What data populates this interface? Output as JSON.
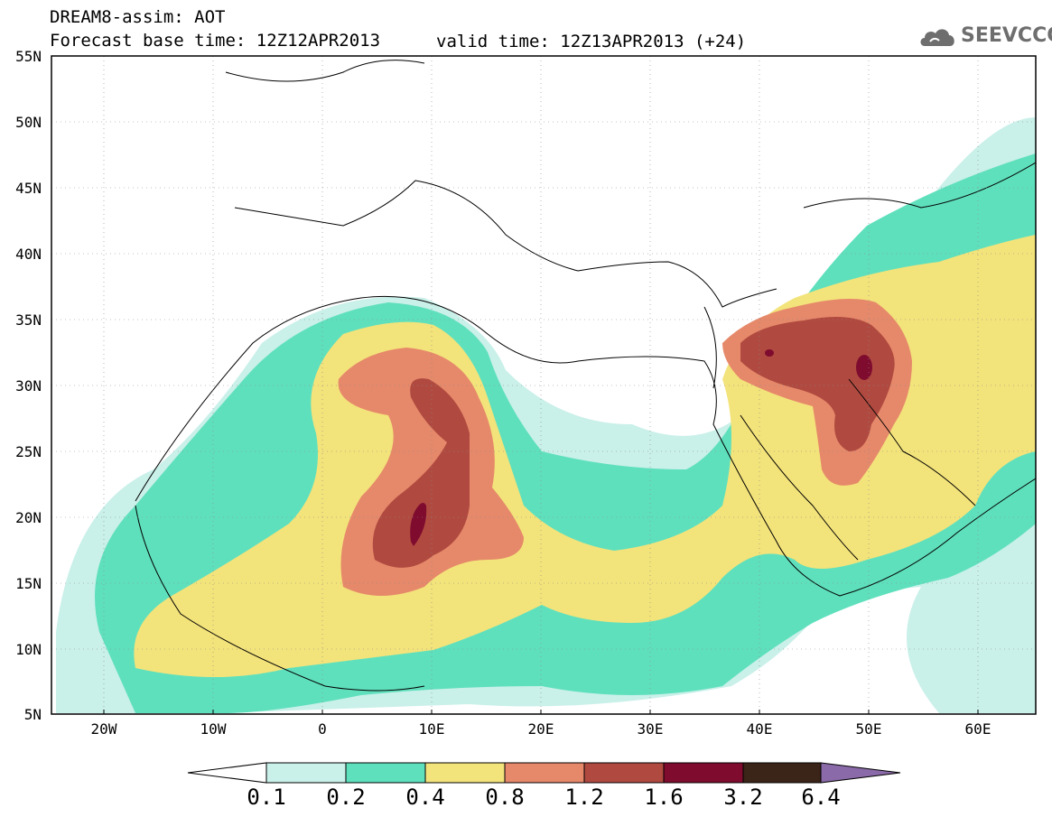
{
  "header": {
    "line1": "DREAM8-assim: AOT",
    "line2": "Forecast base time: 12Z12APR2013",
    "valid": "valid time: 12Z13APR2013 (+24)"
  },
  "logo": {
    "text": "SEEVCCC",
    "icon": "cloud-icon",
    "color": "#6e6e6e"
  },
  "axes": {
    "lat_labels": [
      "55N",
      "50N",
      "45N",
      "40N",
      "35N",
      "30N",
      "25N",
      "20N",
      "15N",
      "10N",
      "5N"
    ],
    "lon_labels": [
      "20W",
      "10W",
      "0",
      "10E",
      "20E",
      "30E",
      "40E",
      "50E",
      "60E"
    ],
    "lon_range": [
      -25,
      65
    ],
    "lat_range": [
      5,
      55
    ]
  },
  "colorbar": {
    "levels": [
      "0.1",
      "0.2",
      "0.4",
      "0.8",
      "1.2",
      "1.6",
      "3.2",
      "6.4"
    ],
    "colors": [
      "#c9f0e9",
      "#5fe0bd",
      "#f3e37b",
      "#e6896a",
      "#b04a40",
      "#7f0b2e",
      "#3b2418",
      "#8a6aa8"
    ]
  }
}
